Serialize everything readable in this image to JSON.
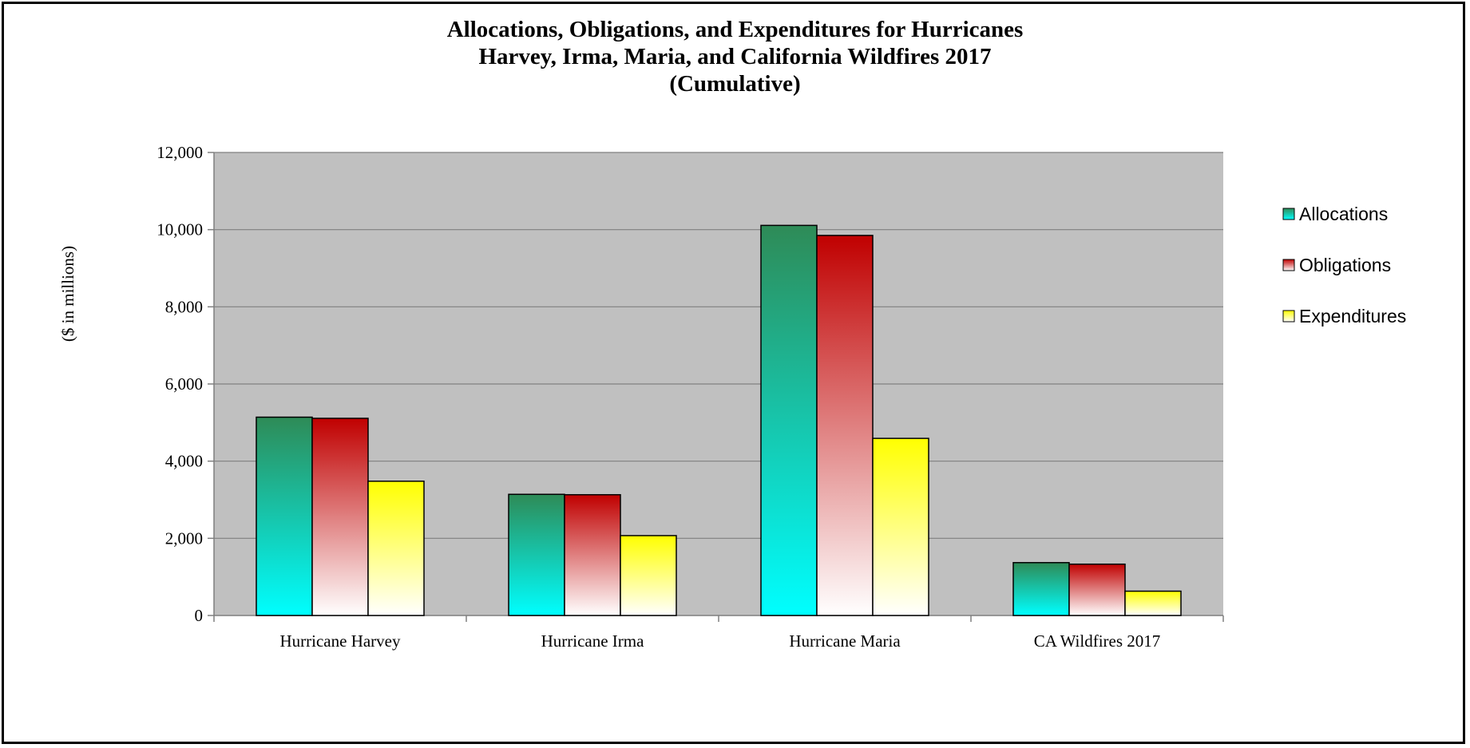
{
  "chart_data": {
    "type": "bar",
    "title_lines": [
      "Allocations, Obligations, and Expenditures for Hurricanes",
      "Harvey, Irma, Maria, and California Wildfires 2017",
      "(Cumulative)"
    ],
    "xlabel": "",
    "ylabel": "($ in millions)",
    "categories": [
      "Hurricane Harvey",
      "Hurricane Irma",
      "Hurricane Maria",
      "CA Wildfires 2017"
    ],
    "series": [
      {
        "name": "Allocations",
        "values": [
          5140,
          3140,
          10110,
          1370
        ],
        "color_top": "#2e8b57",
        "color_bottom": "#00ffff"
      },
      {
        "name": "Obligations",
        "values": [
          5110,
          3130,
          9850,
          1330
        ],
        "color_top": "#c00000",
        "color_bottom": "#ffffff"
      },
      {
        "name": "Expenditures",
        "values": [
          3480,
          2070,
          4590,
          630
        ],
        "color_top": "#ffff00",
        "color_bottom": "#ffffff"
      }
    ],
    "ylim": [
      0,
      12000
    ],
    "yticks": [
      0,
      2000,
      4000,
      6000,
      8000,
      10000,
      12000
    ],
    "ytick_labels": [
      "0",
      "2,000",
      "4,000",
      "6,000",
      "8,000",
      "10,000",
      "12,000"
    ],
    "grid": true,
    "plot_background": "#c0c0c0",
    "legend_position": "right"
  }
}
